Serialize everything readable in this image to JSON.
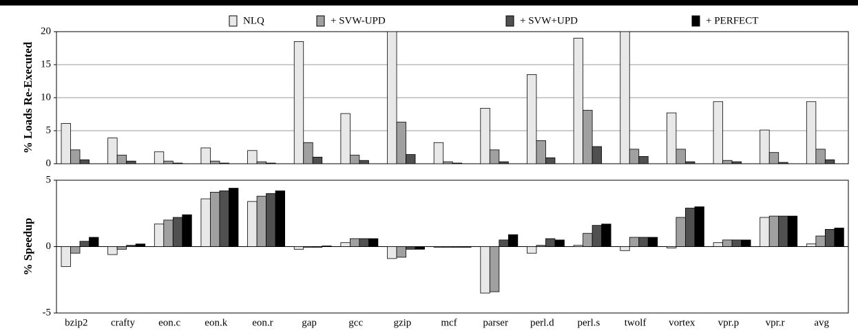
{
  "chart_data": [
    {
      "type": "bar",
      "ylabel": "% Loads Re-Executed",
      "ylim": [
        0,
        20
      ],
      "yticks": [
        0,
        5,
        10,
        15,
        20
      ],
      "grid": true,
      "legend": "top",
      "series": [
        {
          "name": "NLQ",
          "color": "#e8e8e8",
          "values": [
            6.1,
            3.9,
            1.8,
            2.4,
            2.0,
            18.5,
            7.6,
            20,
            3.2,
            8.4,
            13.5,
            19.0,
            20,
            7.7,
            9.4,
            5.1,
            9.4
          ]
        },
        {
          "name": "+ SVW-UPD",
          "color": "#a0a0a0",
          "values": [
            2.1,
            1.3,
            0.4,
            0.4,
            0.3,
            3.2,
            1.3,
            6.3,
            0.3,
            2.1,
            3.5,
            8.1,
            2.2,
            2.2,
            0.5,
            1.7,
            2.2
          ]
        },
        {
          "name": "+ SVW+UPD",
          "color": "#505050",
          "values": [
            0.6,
            0.4,
            0.1,
            0.1,
            0.1,
            1.0,
            0.5,
            1.4,
            0.1,
            0.3,
            0.9,
            2.6,
            1.1,
            0.3,
            0.3,
            0.2,
            0.6
          ]
        },
        {
          "name": "+ PERFECT",
          "color": "#000000",
          "values": [
            0,
            0,
            0,
            0,
            0,
            0,
            0,
            0,
            0,
            0,
            0,
            0,
            0,
            0,
            0,
            0,
            0
          ]
        }
      ]
    },
    {
      "type": "bar",
      "ylabel": "% Speedup",
      "ylim": [
        -5,
        5
      ],
      "yticks": [
        -5,
        0,
        5
      ],
      "grid": false,
      "categories": [
        "bzip2",
        "crafty",
        "eon.c",
        "eon.k",
        "eon.r",
        "gap",
        "gcc",
        "gzip",
        "mcf",
        "parser",
        "perl.d",
        "perl.s",
        "twolf",
        "vortex",
        "vpr.p",
        "vpr.r",
        "avg"
      ],
      "series": [
        {
          "values": [
            -1.5,
            -0.6,
            1.7,
            3.6,
            3.4,
            -0.2,
            0.3,
            -0.9,
            -0.05,
            -3.5,
            -0.5,
            0.1,
            -0.3,
            -0.1,
            0.3,
            2.2,
            0.2
          ]
        },
        {
          "values": [
            -0.5,
            -0.2,
            2.0,
            4.1,
            3.8,
            -0.05,
            0.6,
            -0.8,
            -0.05,
            -3.4,
            0.1,
            1.0,
            0.7,
            2.2,
            0.5,
            2.3,
            0.8
          ]
        },
        {
          "values": [
            0.4,
            0.1,
            2.2,
            4.2,
            4.0,
            -0.05,
            0.6,
            -0.2,
            -0.05,
            0.5,
            0.6,
            1.6,
            0.7,
            2.9,
            0.5,
            2.3,
            1.3
          ]
        },
        {
          "values": [
            0.7,
            0.2,
            2.4,
            4.4,
            4.2,
            0.05,
            0.6,
            -0.2,
            -0.05,
            0.9,
            0.5,
            1.7,
            0.7,
            3.0,
            0.5,
            2.3,
            1.4
          ]
        }
      ]
    }
  ]
}
